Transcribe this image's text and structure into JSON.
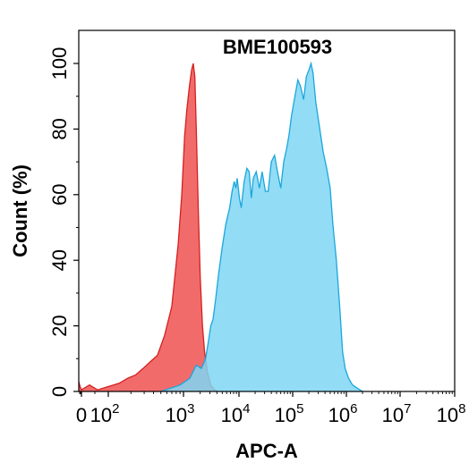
{
  "chart_data": {
    "type": "area",
    "title": "BME100593",
    "xlabel": "APC-A",
    "ylabel": "Count  (%)",
    "x_scale": "biexponential",
    "xlim": [
      -300,
      100000000
    ],
    "ylim": [
      0,
      110
    ],
    "x_ticks": [
      {
        "value": 0,
        "base": "0",
        "exp": ""
      },
      {
        "value": 100,
        "base": "10",
        "exp": "2"
      },
      {
        "value": 1000,
        "base": "10",
        "exp": "3"
      },
      {
        "value": 10000,
        "base": "10",
        "exp": "4"
      },
      {
        "value": 100000,
        "base": "10",
        "exp": "5"
      },
      {
        "value": 1000000,
        "base": "10",
        "exp": "6"
      },
      {
        "value": 10000000,
        "base": "10",
        "exp": "7"
      },
      {
        "value": 100000000,
        "base": "10",
        "exp": "8"
      }
    ],
    "y_ticks": [
      0,
      20,
      40,
      60,
      80,
      100
    ],
    "grid": false,
    "legend": "none",
    "series": [
      {
        "color": "#f26b6b",
        "stroke": "#d42020",
        "points": [
          [
            -300,
            3
          ],
          [
            -150,
            1.5
          ],
          [
            0,
            0.5
          ],
          [
            30,
            2
          ],
          [
            60,
            0.5
          ],
          [
            100,
            1.5
          ],
          [
            140,
            2.5
          ],
          [
            180,
            4
          ],
          [
            230,
            5
          ],
          [
            290,
            7
          ],
          [
            360,
            9
          ],
          [
            450,
            11
          ],
          [
            560,
            17
          ],
          [
            700,
            26
          ],
          [
            850,
            45
          ],
          [
            950,
            60
          ],
          [
            1050,
            78
          ],
          [
            1150,
            86
          ],
          [
            1280,
            93
          ],
          [
            1400,
            98
          ],
          [
            1500,
            100
          ],
          [
            1600,
            96
          ],
          [
            1700,
            80
          ],
          [
            1850,
            55
          ],
          [
            2000,
            35
          ],
          [
            2200,
            20
          ],
          [
            2400,
            12
          ],
          [
            2700,
            6
          ],
          [
            3100,
            2
          ],
          [
            3600,
            0.5
          ],
          [
            4200,
            0
          ]
        ]
      },
      {
        "color": "#7fd6f3",
        "stroke": "#1aa7dc",
        "points": [
          [
            500,
            0
          ],
          [
            900,
            2
          ],
          [
            1300,
            4
          ],
          [
            1700,
            8
          ],
          [
            2100,
            7
          ],
          [
            2500,
            10
          ],
          [
            2800,
            15
          ],
          [
            3100,
            20
          ],
          [
            3400,
            22
          ],
          [
            3800,
            28
          ],
          [
            4300,
            36
          ],
          [
            5000,
            44
          ],
          [
            5800,
            51
          ],
          [
            6800,
            56
          ],
          [
            7500,
            61
          ],
          [
            8200,
            64
          ],
          [
            8800,
            62
          ],
          [
            9300,
            65
          ],
          [
            10200,
            59
          ],
          [
            11000,
            56
          ],
          [
            12500,
            64
          ],
          [
            14000,
            68
          ],
          [
            15500,
            67
          ],
          [
            17000,
            59
          ],
          [
            18500,
            65
          ],
          [
            21000,
            67
          ],
          [
            24000,
            62
          ],
          [
            27000,
            67
          ],
          [
            31000,
            61
          ],
          [
            35000,
            61
          ],
          [
            40000,
            70
          ],
          [
            46000,
            72
          ],
          [
            52000,
            67
          ],
          [
            60000,
            62
          ],
          [
            68000,
            70
          ],
          [
            77000,
            74
          ],
          [
            85000,
            78
          ],
          [
            95000,
            84
          ],
          [
            110000,
            90
          ],
          [
            125000,
            95
          ],
          [
            140000,
            93
          ],
          [
            160000,
            89
          ],
          [
            180000,
            96
          ],
          [
            200000,
            98
          ],
          [
            220000,
            100
          ],
          [
            240000,
            97
          ],
          [
            270000,
            88
          ],
          [
            320000,
            80
          ],
          [
            370000,
            73
          ],
          [
            430000,
            68
          ],
          [
            500000,
            62
          ],
          [
            560000,
            51
          ],
          [
            650000,
            40
          ],
          [
            750000,
            26
          ],
          [
            850000,
            12
          ],
          [
            950000,
            7
          ],
          [
            1100000,
            4
          ],
          [
            1300000,
            2
          ],
          [
            1600000,
            1
          ],
          [
            2000000,
            0
          ]
        ]
      }
    ]
  }
}
